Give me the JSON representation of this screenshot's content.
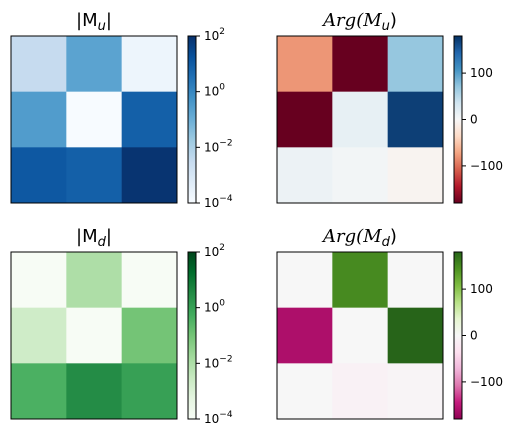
{
  "chart_data": [
    {
      "type": "heatmap",
      "title": "|M_u|",
      "title_display": {
        "pre": "|M",
        "sub": "u",
        "post": "|"
      },
      "colormap": "Blues",
      "scale": "log",
      "vlim": [
        0.0001,
        100
      ],
      "colorbar_ticks": [
        {
          "value": 100,
          "base": "10",
          "exp": "2"
        },
        {
          "value": 1,
          "base": "10",
          "exp": "0"
        },
        {
          "value": 0.01,
          "base": "10",
          "exp": "−2"
        },
        {
          "value": 0.0001,
          "base": "10",
          "exp": "−4"
        }
      ],
      "values": [
        [
          0.00316,
          0.2,
          0.0002
        ],
        [
          0.3,
          0.0001,
          8
        ],
        [
          12,
          8,
          80
        ]
      ]
    },
    {
      "type": "heatmap",
      "title": "Arg(M_u)",
      "title_display": {
        "pre": "Arg(M",
        "sub": "u",
        "post": ")"
      },
      "colormap": "RdBu",
      "scale": "linear",
      "vlim": [
        -180,
        180
      ],
      "colorbar_ticks": [
        {
          "value": 100,
          "label": "100"
        },
        {
          "value": 0,
          "label": "0"
        },
        {
          "value": -100,
          "label": "−100"
        }
      ],
      "values": [
        [
          -80,
          -180,
          70
        ],
        [
          -180,
          15,
          170
        ],
        [
          10,
          5,
          -5
        ]
      ]
    },
    {
      "type": "heatmap",
      "title": "|M_d|",
      "title_display": {
        "pre": "|M",
        "sub": "d",
        "post": "|"
      },
      "colormap": "Greens",
      "scale": "log",
      "vlim": [
        0.0001,
        100
      ],
      "colorbar_ticks": [
        {
          "value": 100,
          "base": "10",
          "exp": "2"
        },
        {
          "value": 1,
          "base": "10",
          "exp": "0"
        },
        {
          "value": 0.01,
          "base": "10",
          "exp": "−2"
        },
        {
          "value": 0.0001,
          "base": "10",
          "exp": "−4"
        }
      ],
      "values": [
        [
          0.0001,
          0.01,
          0.0001
        ],
        [
          0.002,
          0.0001,
          0.1
        ],
        [
          0.4,
          3,
          1
        ]
      ]
    },
    {
      "type": "heatmap",
      "title": "Arg(M_d)",
      "title_display": {
        "pre": "Arg(M",
        "sub": "d",
        "post": ")"
      },
      "colormap": "PiYG",
      "scale": "linear",
      "vlim": [
        -180,
        180
      ],
      "colorbar_ticks": [
        {
          "value": 100,
          "label": "100"
        },
        {
          "value": 0,
          "label": "0"
        },
        {
          "value": -100,
          "label": "−100"
        }
      ],
      "values": [
        [
          0,
          150,
          0
        ],
        [
          -160,
          0,
          180
        ],
        [
          0,
          -10,
          -5
        ]
      ]
    }
  ],
  "colormaps": {
    "Blues": [
      "#f7fbff",
      "#deebf7",
      "#c6dbef",
      "#9ecae1",
      "#6baed6",
      "#4292c6",
      "#2171b5",
      "#08519c",
      "#08306b"
    ],
    "Greens": [
      "#f7fcf5",
      "#e5f5e0",
      "#c7e9c0",
      "#a1d99b",
      "#74c476",
      "#41ab5d",
      "#238b45",
      "#006d2c",
      "#00441b"
    ],
    "RdBu": [
      "#67001f",
      "#b2182b",
      "#d6604d",
      "#f4a582",
      "#fddbc7",
      "#f7f7f7",
      "#d1e5f0",
      "#92c5de",
      "#4393c3",
      "#2166ac",
      "#053061"
    ],
    "PiYG": [
      "#8e0152",
      "#c51b7d",
      "#de77ae",
      "#f1b6da",
      "#fde0ef",
      "#f7f7f7",
      "#e6f5d0",
      "#b8e186",
      "#7fbc41",
      "#4d9221",
      "#276419"
    ]
  }
}
